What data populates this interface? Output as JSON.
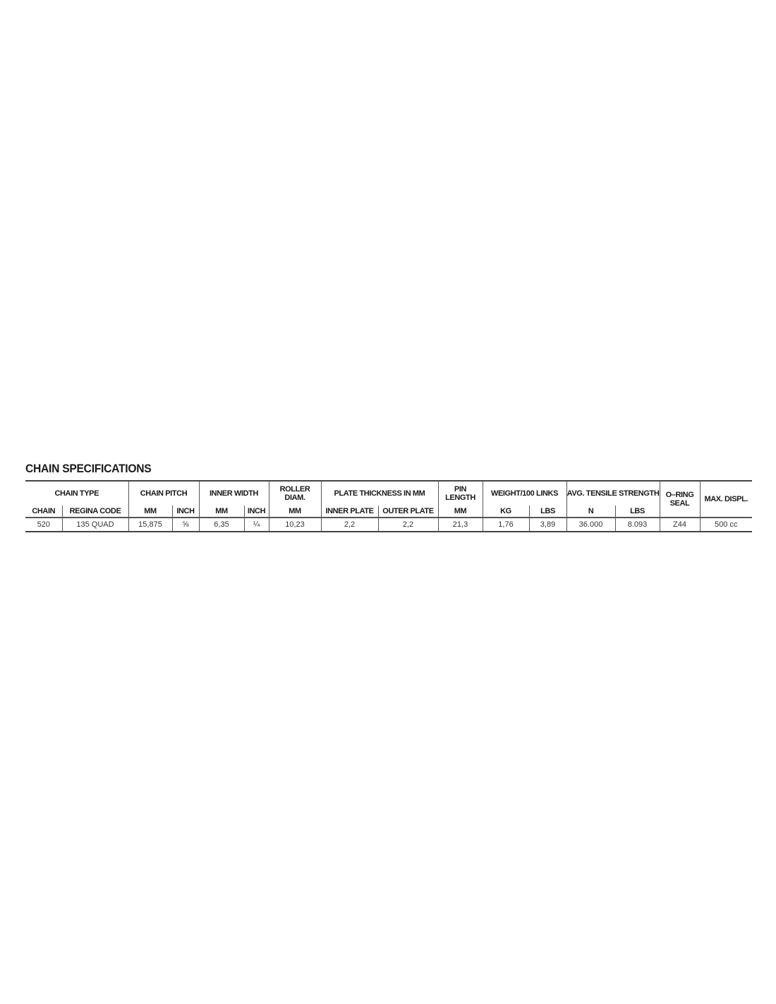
{
  "title": "CHAIN SPECIFICATIONS",
  "table": {
    "group_headers": [
      "CHAIN TYPE",
      "CHAIN PITCH",
      "INNER WIDTH",
      "ROLLER DIAM.",
      "PLATE THICKNESS IN MM",
      "PIN LENGTH",
      "WEIGHT/100 LINKS",
      "AVG. TENSILE STRENGTH",
      "O–RING SEAL",
      "MAX. DISPL."
    ],
    "sub_headers": [
      "CHAIN",
      "REGINA CODE",
      "MM",
      "INCH",
      "MM",
      "INCH",
      "MM",
      "INNER PLATE",
      "OUTER PLATE",
      "MM",
      "KG",
      "LBS",
      "N",
      "LBS"
    ],
    "rows": [
      [
        "520",
        "135 QUAD",
        "15,875",
        "⅝",
        "6,35",
        "¼",
        "10,23",
        "2,2",
        "2,2",
        "21,3",
        "1,76",
        "3,89",
        "36.000",
        "8.093",
        "Z44",
        "500 cc"
      ]
    ]
  }
}
